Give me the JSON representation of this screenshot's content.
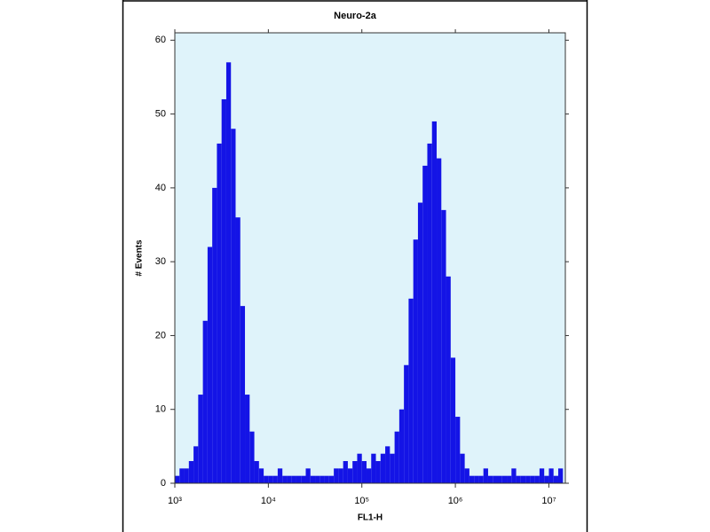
{
  "chart_data": {
    "type": "histogram",
    "title": "Neuro-2a",
    "x_label": "FL1-H",
    "y_label": "# Events",
    "x_scale": "log",
    "color": "#1414e6",
    "background": "#dff3fa",
    "xlim": [
      1000,
      15000000
    ],
    "xticks": [
      {
        "value": 1000,
        "label": "10³"
      },
      {
        "value": 10000,
        "label": "10⁴"
      },
      {
        "value": 100000,
        "label": "10⁵"
      },
      {
        "value": 1000000,
        "label": "10⁶"
      },
      {
        "value": 10000000,
        "label": "10⁷"
      }
    ],
    "ylim": [
      0,
      61
    ],
    "yticks": [
      0,
      10,
      20,
      30,
      40,
      50,
      60
    ],
    "bins": [
      1000,
      1122,
      1259,
      1413,
      1585,
      1778,
      1995,
      2239,
      2512,
      2818,
      3162,
      3548,
      3981,
      4467,
      5012,
      5623,
      6310,
      7079,
      7943,
      8913,
      10000,
      11220,
      12590,
      14130,
      15850,
      17780,
      19950,
      22390,
      25120,
      28180,
      31620,
      35480,
      39810,
      44670,
      50120,
      56230,
      63100,
      70790,
      79430,
      89130,
      100000,
      112200,
      125900,
      141300,
      158500,
      177800,
      199500,
      223900,
      251200,
      281800,
      316200,
      354800,
      398100,
      446700,
      501200,
      562300,
      631000,
      707900,
      794300,
      891300,
      1000000,
      1122000,
      1259000,
      1413000,
      1585000,
      1778000,
      1995000,
      2239000,
      2512000,
      2818000,
      3162000,
      3548000,
      3981000,
      4467000,
      5012000,
      5623000,
      6310000,
      7079000,
      7943000,
      8913000,
      10000000,
      11220000,
      12590000,
      14130000
    ],
    "values": [
      1,
      2,
      2,
      3,
      5,
      12,
      22,
      32,
      40,
      46,
      52,
      57,
      48,
      36,
      24,
      12,
      7,
      3,
      2,
      1,
      1,
      1,
      2,
      1,
      1,
      1,
      1,
      1,
      2,
      1,
      1,
      1,
      1,
      1,
      2,
      2,
      3,
      2,
      3,
      4,
      3,
      2,
      4,
      3,
      4,
      5,
      4,
      7,
      10,
      16,
      25,
      33,
      38,
      43,
      46,
      49,
      44,
      37,
      28,
      17,
      9,
      4,
      2,
      1,
      1,
      1,
      2,
      1,
      1,
      1,
      1,
      1,
      2,
      1,
      1,
      1,
      1,
      1,
      2,
      1,
      2,
      1,
      2
    ]
  }
}
